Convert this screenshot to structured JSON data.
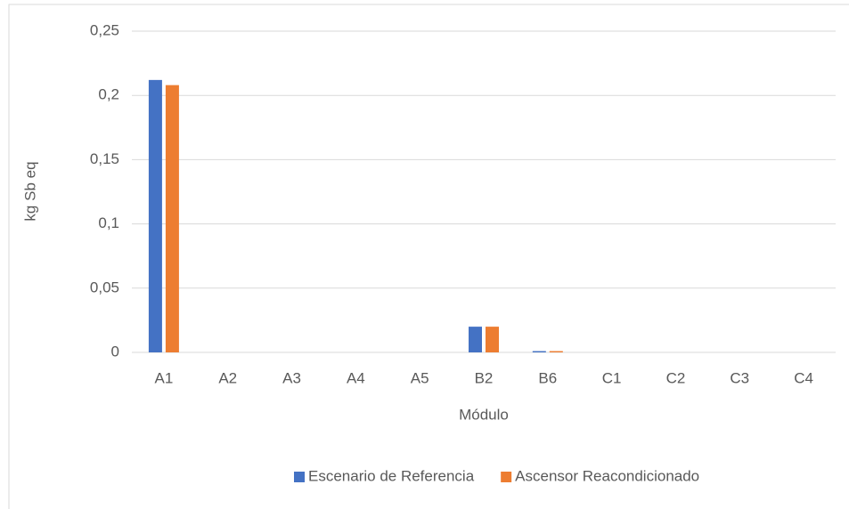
{
  "chart_data": {
    "type": "bar",
    "x_label": "Módulo",
    "y_label": "kg Sb eq",
    "categories": [
      "A1",
      "A2",
      "A3",
      "A4",
      "A5",
      "B2",
      "B6",
      "C1",
      "C2",
      "C3",
      "C4"
    ],
    "series": [
      {
        "name": "Escenario de Referencia",
        "color": "#4472c4",
        "values": [
          0.212,
          0,
          0,
          0,
          0,
          0.02,
          0.001,
          0,
          0,
          0,
          0
        ]
      },
      {
        "name": "Ascensor Reacondicionado",
        "color": "#ed7d31",
        "values": [
          0.208,
          0,
          0,
          0,
          0,
          0.02,
          0.001,
          0,
          0,
          0,
          0
        ]
      }
    ],
    "ylim": [
      0,
      0.25
    ],
    "yticks": [
      0,
      {
        "value": 0.05,
        "label": "0,05"
      },
      {
        "value": 0.1,
        "label": "0,1"
      },
      {
        "value": 0.15,
        "label": "0,15"
      },
      {
        "value": 0.2,
        "label": "0,2"
      },
      {
        "value": 0.25,
        "label": "0,25"
      }
    ],
    "grid": true,
    "legend": "bottom"
  }
}
